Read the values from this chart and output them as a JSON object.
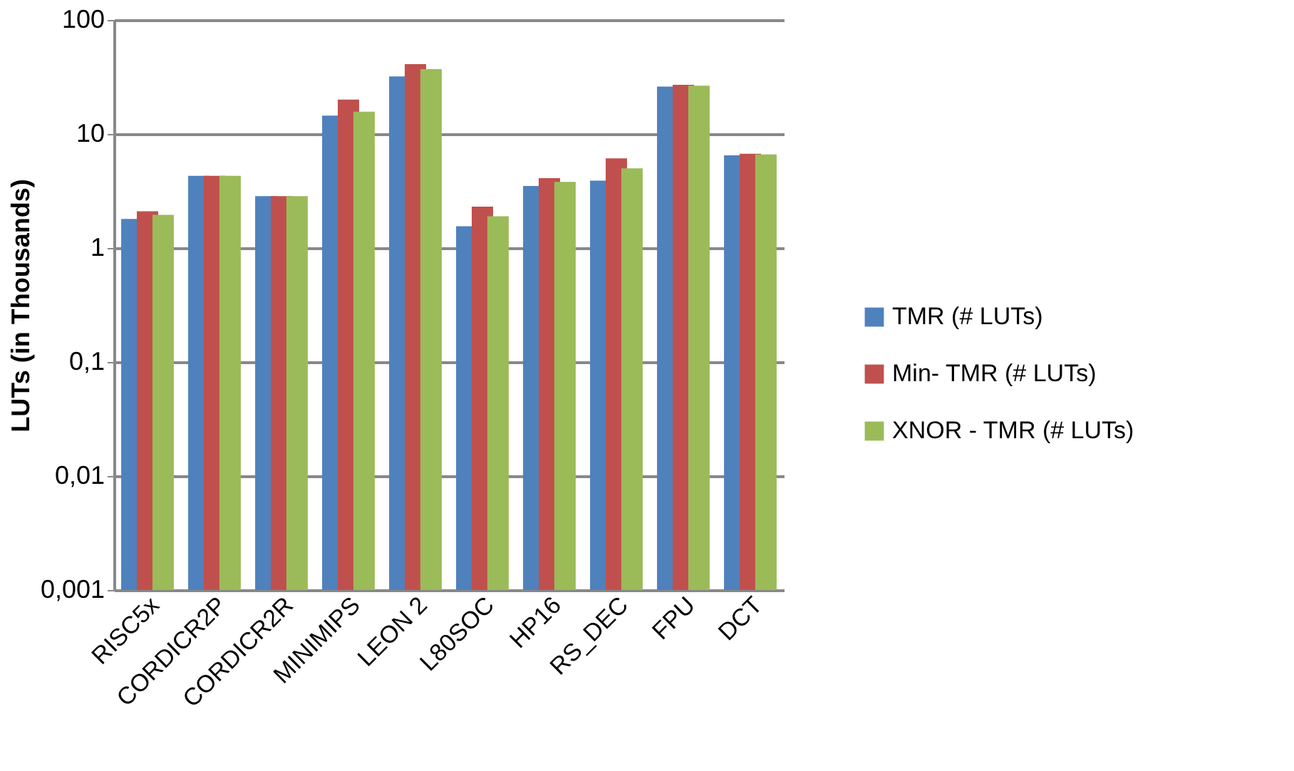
{
  "chart_data": {
    "type": "bar",
    "ylabel": "LUTs (in Thousands)",
    "categories": [
      "RISC5x",
      "CORDICR2P",
      "CORDICR2R",
      "MINIMIPS",
      "LEON 2",
      "L80SOC",
      "HP16",
      "RS_DEC",
      "FPU",
      "DCT"
    ],
    "series": [
      {
        "name": "TMR (# LUTs)",
        "color": "#4f81bd",
        "values": [
          1.8,
          4.3,
          2.85,
          14.5,
          32,
          1.55,
          3.5,
          3.9,
          26,
          6.5
        ]
      },
      {
        "name": "Min- TMR (# LUTs)",
        "color": "#c0504d",
        "values": [
          2.1,
          4.3,
          2.85,
          20,
          41,
          2.3,
          4.1,
          6.1,
          27,
          6.7
        ]
      },
      {
        "name": "XNOR - TMR (# LUTs)",
        "color": "#9bbb59",
        "values": [
          1.95,
          4.3,
          2.85,
          15.7,
          37,
          1.9,
          3.8,
          5.0,
          26.5,
          6.6
        ]
      }
    ],
    "log": true,
    "ylim": [
      0.001,
      100
    ],
    "yticks": [
      {
        "value": 0.001,
        "label": "0,001"
      },
      {
        "value": 0.01,
        "label": "0,01"
      },
      {
        "value": 0.1,
        "label": "0,1"
      },
      1,
      10,
      100
    ],
    "grid": "y",
    "legend": "right"
  }
}
